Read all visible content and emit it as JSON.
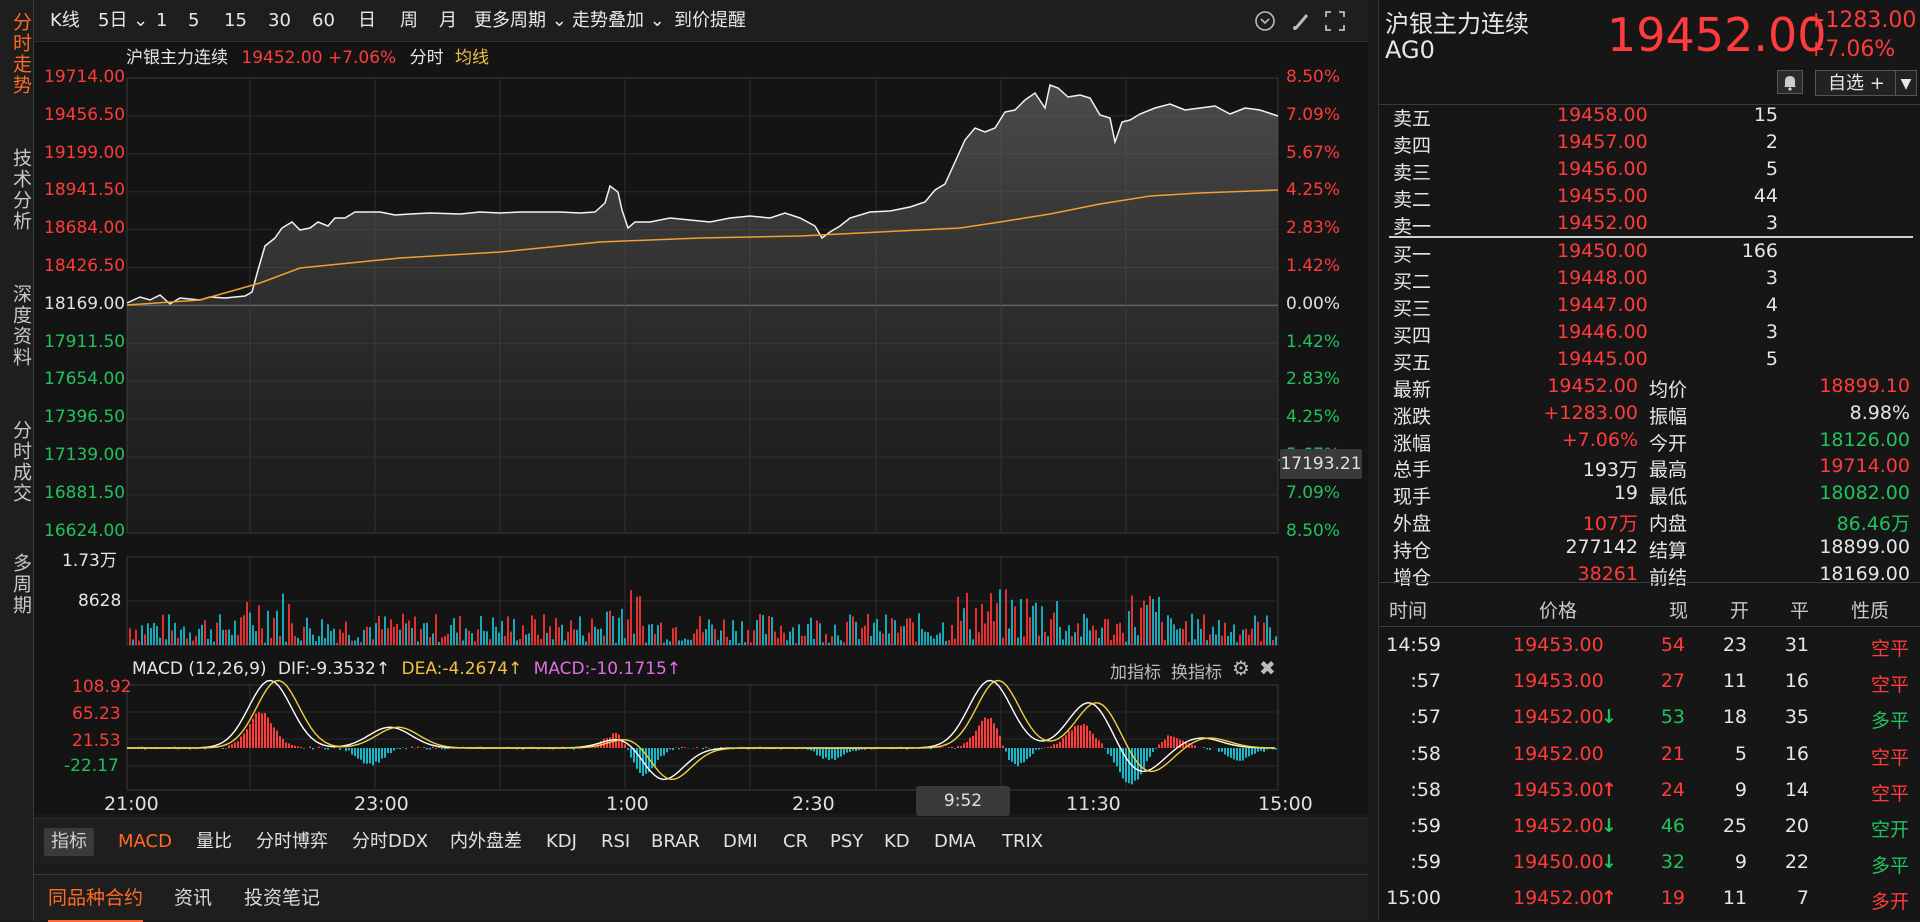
{
  "side_tabs": [
    "分时走势",
    "技术分析",
    "深度资料",
    "分时成交",
    "多周期"
  ],
  "toolbar": {
    "items": [
      "K线",
      "5日 ⌄",
      "1",
      "5",
      "15",
      "30",
      "60",
      "日",
      "周",
      "月",
      "更多周期 ⌄",
      "走势叠加 ⌄",
      "到价提醒"
    ],
    "icons": [
      "chevron-circle-icon",
      "brush-icon",
      "fullscreen-icon"
    ]
  },
  "legend": {
    "name": "沪银主力连续",
    "price": "19452.00",
    "change": "+7.06%",
    "mode": "分时",
    "avg_label": "均线"
  },
  "price_axis": {
    "left": [
      "19714.00",
      "19456.50",
      "19199.00",
      "18941.50",
      "18684.00",
      "18426.50",
      "18169.00",
      "17911.50",
      "17654.00",
      "17396.50",
      "17139.00",
      "16881.50",
      "16624.00"
    ],
    "right": [
      "8.50%",
      "7.09%",
      "5.67%",
      "4.25%",
      "2.83%",
      "1.42%",
      "0.00%",
      "1.42%",
      "2.83%",
      "4.25%",
      "5.67%",
      "7.09%",
      "8.50%"
    ],
    "cursor_value": "17193.21"
  },
  "volume_axis": {
    "labels": [
      "1.73万",
      "8628"
    ]
  },
  "macd": {
    "title": "MACD (12,26,9)",
    "dif": "DIF:-9.3532",
    "dea": "DEA:-4.2674",
    "macd": "MACD:-10.1715",
    "arrows": [
      "↑",
      "↑",
      "↑"
    ],
    "add_indicator": "加指标",
    "switch_indicator": "换指标",
    "axis": [
      "108.92",
      "65.23",
      "21.53",
      "-22.17"
    ]
  },
  "time_axis": {
    "labels": [
      "21:00",
      "23:00",
      "1:00",
      "2:30",
      "11:30",
      "15:00"
    ],
    "cursor_time": "9:52"
  },
  "indicator_bar": {
    "label": "指标",
    "items": [
      "MACD",
      "量比",
      "分时博弈",
      "分时DDX",
      "内外盘差",
      "KDJ",
      "RSI",
      "BRAR",
      "DMI",
      "CR",
      "PSY",
      "KD",
      "DMA",
      "TRIX"
    ],
    "active": "MACD"
  },
  "bottom_tabs": {
    "items": [
      "同品种合约",
      "资讯",
      "投资笔记"
    ],
    "active": "同品种合约"
  },
  "quote": {
    "name": "沪银主力连续",
    "code": "AG0",
    "price": "19452.00",
    "change": "+1283.00",
    "change_pct": "+7.06%",
    "watch_button": "自选 +",
    "bell": "bell-icon"
  },
  "order_book": {
    "asks": [
      {
        "label": "卖五",
        "price": "19458.00",
        "vol": "15"
      },
      {
        "label": "卖四",
        "price": "19457.00",
        "vol": "2"
      },
      {
        "label": "卖三",
        "price": "19456.00",
        "vol": "5"
      },
      {
        "label": "卖二",
        "price": "19455.00",
        "vol": "44"
      },
      {
        "label": "卖一",
        "price": "19452.00",
        "vol": "3"
      }
    ],
    "bids": [
      {
        "label": "买一",
        "price": "19450.00",
        "vol": "166"
      },
      {
        "label": "买二",
        "price": "19448.00",
        "vol": "3"
      },
      {
        "label": "买三",
        "price": "19447.00",
        "vol": "4"
      },
      {
        "label": "买四",
        "price": "19446.00",
        "vol": "3"
      },
      {
        "label": "买五",
        "price": "19445.00",
        "vol": "5"
      }
    ]
  },
  "stats": [
    {
      "l1": "最新",
      "v1": "19452.00",
      "c1": "red",
      "l2": "均价",
      "v2": "18899.10",
      "c2": "red"
    },
    {
      "l1": "涨跌",
      "v1": "+1283.00",
      "c1": "red",
      "l2": "振幅",
      "v2": "8.98%",
      "c2": "white"
    },
    {
      "l1": "涨幅",
      "v1": "+7.06%",
      "c1": "red",
      "l2": "今开",
      "v2": "18126.00",
      "c2": "green"
    },
    {
      "l1": "总手",
      "v1": "193万",
      "c1": "white",
      "l2": "最高",
      "v2": "19714.00",
      "c2": "red"
    },
    {
      "l1": "现手",
      "v1": "19",
      "c1": "white",
      "l2": "最低",
      "v2": "18082.00",
      "c2": "green"
    },
    {
      "l1": "外盘",
      "v1": "107万",
      "c1": "red",
      "l2": "内盘",
      "v2": "86.46万",
      "c2": "green"
    },
    {
      "l1": "持仓",
      "v1": "277142",
      "c1": "white",
      "l2": "结算",
      "v2": "18899.00",
      "c2": "white"
    },
    {
      "l1": "增仓",
      "v1": "38261",
      "c1": "red",
      "l2": "前结",
      "v2": "18169.00",
      "c2": "white"
    }
  ],
  "trades": {
    "headers": [
      "时间",
      "价格",
      "现",
      "开",
      "平",
      "性质"
    ],
    "rows": [
      {
        "time": "14:59",
        "price": "19453.00",
        "arrow": "",
        "now": "54",
        "open": "23",
        "close": "31",
        "nature": "空平",
        "pc": "red",
        "nc": "red",
        "natc": "red"
      },
      {
        "time": ":57",
        "price": "19453.00",
        "arrow": "",
        "now": "27",
        "open": "11",
        "close": "16",
        "nature": "空平",
        "pc": "red",
        "nc": "red",
        "natc": "red"
      },
      {
        "time": ":57",
        "price": "19452.00",
        "arrow": "↓",
        "now": "53",
        "open": "18",
        "close": "35",
        "nature": "多平",
        "pc": "red",
        "nc": "green",
        "natc": "green"
      },
      {
        "time": ":58",
        "price": "19452.00",
        "arrow": "",
        "now": "21",
        "open": "5",
        "close": "16",
        "nature": "空平",
        "pc": "red",
        "nc": "red",
        "natc": "red"
      },
      {
        "time": ":58",
        "price": "19453.00",
        "arrow": "↑",
        "now": "24",
        "open": "9",
        "close": "14",
        "nature": "空平",
        "pc": "red",
        "nc": "red",
        "natc": "red"
      },
      {
        "time": ":59",
        "price": "19452.00",
        "arrow": "↓",
        "now": "46",
        "open": "25",
        "close": "20",
        "nature": "空开",
        "pc": "red",
        "nc": "green",
        "natc": "green"
      },
      {
        "time": ":59",
        "price": "19450.00",
        "arrow": "↓",
        "now": "32",
        "open": "9",
        "close": "22",
        "nature": "多平",
        "pc": "red",
        "nc": "green",
        "natc": "green"
      },
      {
        "time": "15:00",
        "price": "19452.00",
        "arrow": "↑",
        "now": "19",
        "open": "11",
        "close": "7",
        "nature": "多开",
        "pc": "red",
        "nc": "red",
        "natc": "red"
      }
    ]
  },
  "colors": {
    "up": "#ff3b3b",
    "down": "#21c25e",
    "avg": "#f0a030",
    "accent": "#ff6a24",
    "macd_dea": "#f0d040",
    "macd_dif": "#ffffff",
    "macd_pos": "#ff3b3b",
    "macd_neg": "#18b8c8"
  }
}
